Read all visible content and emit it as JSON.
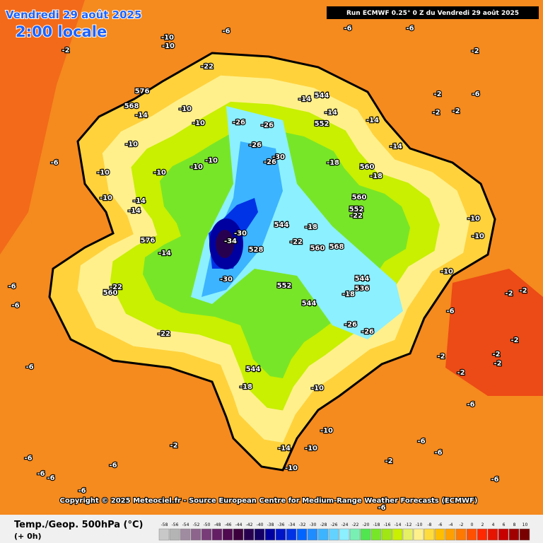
{
  "header": {
    "date": "Vendredi 29 août 2025",
    "time": "2:00 locale",
    "run": "Run ECMWF 0.25° 0 Z du Vendredi 29 août 2025"
  },
  "copyright": "Copyright © 2025 Meteociel.fr - Source European Centre for Medium-Range Weather Forecasts (ECMWF)",
  "footer": {
    "title": "Temp./Geop. 500hPa (°C)",
    "lead": "(+ 0h)"
  },
  "legend": {
    "ticks": [
      -58,
      -56,
      -54,
      -52,
      -50,
      -48,
      -46,
      -44,
      -42,
      -40,
      -38,
      -36,
      -34,
      -32,
      -30,
      -28,
      -26,
      -24,
      -22,
      -20,
      -18,
      -16,
      -14,
      -12,
      -10,
      -8,
      -6,
      -4,
      -2,
      0,
      2,
      4,
      6,
      8,
      10
    ],
    "colors": [
      "#c8c8c8",
      "#b4b4b4",
      "#a08ca0",
      "#8c648c",
      "#783c78",
      "#641e64",
      "#500a50",
      "#3c003c",
      "#280050",
      "#140064",
      "#0000a0",
      "#0014c8",
      "#0032e6",
      "#0064ff",
      "#1e8cff",
      "#3cb4ff",
      "#64d2ff",
      "#8cf0ff",
      "#78f0b4",
      "#50e650",
      "#78e628",
      "#a0e614",
      "#c8f000",
      "#e6f064",
      "#fff08c",
      "#ffdc3c",
      "#ffbe00",
      "#ffa000",
      "#ff7800",
      "#ff5000",
      "#ff2800",
      "#e61400",
      "#c80000",
      "#a00000",
      "#780000"
    ]
  },
  "map_labels": [
    -10,
    -10,
    -6,
    -2,
    -22,
    576,
    568,
    -14,
    -10,
    -10,
    -10,
    -10,
    -10,
    -10,
    -10,
    -6,
    -10,
    -14,
    -14,
    576,
    -14,
    -26,
    -26,
    -26,
    -30,
    -26,
    -14,
    544,
    -14,
    552,
    -14,
    -18,
    560,
    -18,
    560,
    552,
    -22,
    544,
    -18,
    -22,
    560,
    568,
    -30,
    -34,
    528,
    -30,
    552,
    544,
    -18,
    544,
    536,
    -26,
    -26,
    560,
    -22,
    -22,
    544,
    -18,
    -10,
    -14,
    -10,
    -10,
    -10,
    -6,
    -6,
    -6,
    -2,
    -6,
    -6,
    -2,
    -2,
    -6,
    -2,
    -14,
    -10,
    -10,
    -10,
    -6,
    -2,
    -2,
    -2,
    -2,
    -2,
    -2,
    -2,
    -6,
    -2,
    -6,
    -6,
    -6,
    -6,
    -6,
    -2,
    -6,
    -6,
    -6,
    -6
  ]
}
